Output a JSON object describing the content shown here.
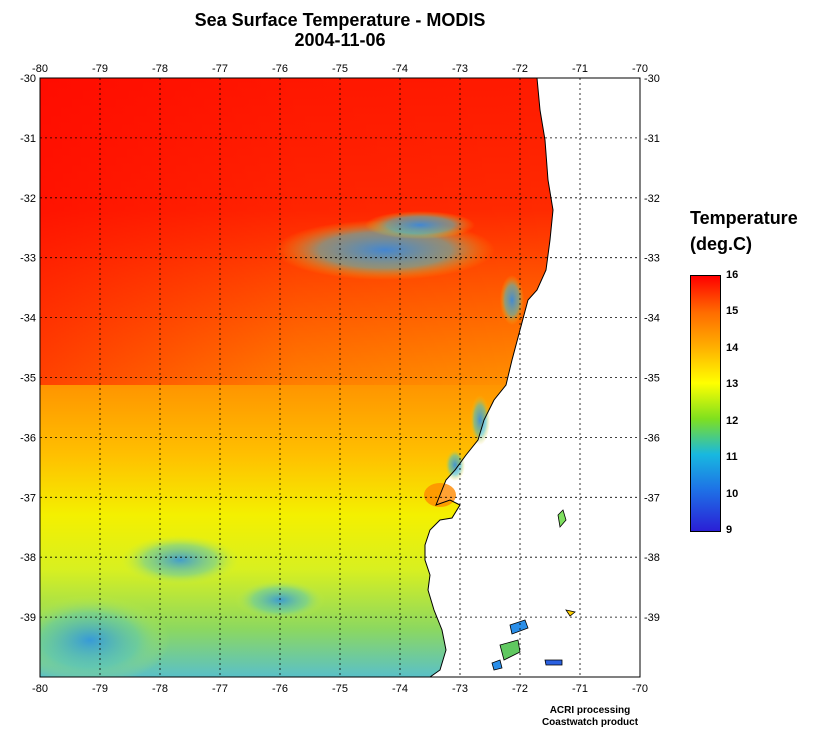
{
  "title": "Sea Surface Temperature - MODIS",
  "date": "2004-11-06",
  "map": {
    "lon_range": [
      -80,
      -70
    ],
    "lat_range": [
      -40,
      -30
    ],
    "lon_ticks": [
      "-80",
      "-79",
      "-78",
      "-77",
      "-76",
      "-75",
      "-74",
      "-73",
      "-72",
      "-71",
      "-70"
    ],
    "lat_ticks": [
      "-30",
      "-31",
      "-32",
      "-33",
      "-34",
      "-35",
      "-36",
      "-37",
      "-38",
      "-39"
    ],
    "grid": "dotted",
    "land_color": "#ffffff",
    "coastline_color": "#000000"
  },
  "legend": {
    "title_line1": "Temperature",
    "title_line2": "(deg.C)",
    "labels": [
      "16",
      "15",
      "14",
      "13",
      "12",
      "11",
      "10",
      "9"
    ],
    "min": 9,
    "max": 16
  },
  "credits": {
    "line1": "ACRI processing",
    "line2": "Coastwatch product"
  }
}
